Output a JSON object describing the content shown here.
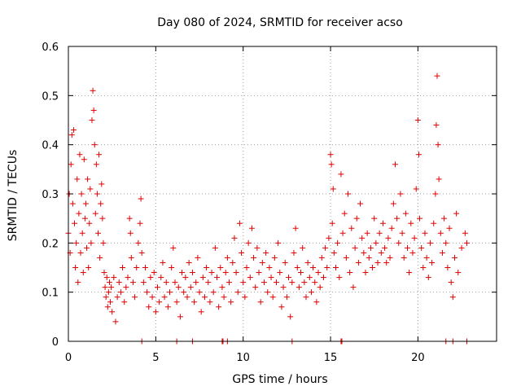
{
  "chart_data": {
    "type": "scatter",
    "title": "Day 080 of 2024, SRMTID for receiver acso",
    "xlabel": "GPS time / hours",
    "ylabel": "SRMTID / TECUs",
    "xlim": [
      0,
      24.5
    ],
    "ylim": [
      0,
      0.6
    ],
    "xticks": [
      0,
      5,
      10,
      15,
      20
    ],
    "xtick_labels": [
      "0",
      "5",
      "10",
      "15",
      "20"
    ],
    "yticks": [
      0,
      0.1,
      0.2,
      0.3,
      0.4,
      0.5,
      0.6
    ],
    "ytick_labels": [
      "0",
      "0.1",
      "0.2",
      "0.3",
      "0.4",
      "0.5",
      "0.6"
    ],
    "grid": true,
    "marker": "+",
    "color": "#e00000",
    "series": [
      {
        "name": "SRMTID",
        "points": [
          [
            0.0,
            0.22
          ],
          [
            0.05,
            0.3
          ],
          [
            0.1,
            0.18
          ],
          [
            0.15,
            0.36
          ],
          [
            0.2,
            0.42
          ],
          [
            0.25,
            0.28
          ],
          [
            0.3,
            0.43
          ],
          [
            0.35,
            0.24
          ],
          [
            0.4,
            0.15
          ],
          [
            0.45,
            0.2
          ],
          [
            0.5,
            0.33
          ],
          [
            0.55,
            0.12
          ],
          [
            0.6,
            0.26
          ],
          [
            0.65,
            0.38
          ],
          [
            0.7,
            0.18
          ],
          [
            0.75,
            0.3
          ],
          [
            0.8,
            0.22
          ],
          [
            0.85,
            0.14
          ],
          [
            0.9,
            0.37
          ],
          [
            0.95,
            0.25
          ],
          [
            1.0,
            0.28
          ],
          [
            1.05,
            0.19
          ],
          [
            1.1,
            0.33
          ],
          [
            1.15,
            0.15
          ],
          [
            1.2,
            0.24
          ],
          [
            1.25,
            0.31
          ],
          [
            1.3,
            0.2
          ],
          [
            1.35,
            0.45
          ],
          [
            1.4,
            0.51
          ],
          [
            1.45,
            0.47
          ],
          [
            1.5,
            0.4
          ],
          [
            1.55,
            0.26
          ],
          [
            1.6,
            0.36
          ],
          [
            1.65,
            0.3
          ],
          [
            1.7,
            0.22
          ],
          [
            1.75,
            0.38
          ],
          [
            1.8,
            0.17
          ],
          [
            1.85,
            0.28
          ],
          [
            1.9,
            0.32
          ],
          [
            1.95,
            0.25
          ],
          [
            2.0,
            0.2
          ],
          [
            2.05,
            0.14
          ],
          [
            2.1,
            0.11
          ],
          [
            2.15,
            0.09
          ],
          [
            2.2,
            0.13
          ],
          [
            2.25,
            0.07
          ],
          [
            2.3,
            0.1
          ],
          [
            2.35,
            0.12
          ],
          [
            2.4,
            0.08
          ],
          [
            2.45,
            0.11
          ],
          [
            2.5,
            0.06
          ],
          [
            2.6,
            0.13
          ],
          [
            2.7,
            0.04
          ],
          [
            2.8,
            0.09
          ],
          [
            2.9,
            0.12
          ],
          [
            3.0,
            0.1
          ],
          [
            3.1,
            0.15
          ],
          [
            3.2,
            0.08
          ],
          [
            3.3,
            0.11
          ],
          [
            3.4,
            0.13
          ],
          [
            3.5,
            0.25
          ],
          [
            3.55,
            0.22
          ],
          [
            3.6,
            0.17
          ],
          [
            3.7,
            0.12
          ],
          [
            3.8,
            0.09
          ],
          [
            3.9,
            0.15
          ],
          [
            4.0,
            0.2
          ],
          [
            4.1,
            0.24
          ],
          [
            4.15,
            0.29
          ],
          [
            4.2,
            0.18
          ],
          [
            4.3,
            0.12
          ],
          [
            4.4,
            0.15
          ],
          [
            4.5,
            0.1
          ],
          [
            4.6,
            0.07
          ],
          [
            4.7,
            0.13
          ],
          [
            4.8,
            0.09
          ],
          [
            4.9,
            0.14
          ],
          [
            5.0,
            0.06
          ],
          [
            5.1,
            0.11
          ],
          [
            5.2,
            0.08
          ],
          [
            5.3,
            0.13
          ],
          [
            5.4,
            0.16
          ],
          [
            5.5,
            0.09
          ],
          [
            5.6,
            0.12
          ],
          [
            5.7,
            0.07
          ],
          [
            5.8,
            0.1
          ],
          [
            5.9,
            0.15
          ],
          [
            6.0,
            0.19
          ],
          [
            6.1,
            0.12
          ],
          [
            6.2,
            0.08
          ],
          [
            6.3,
            0.11
          ],
          [
            6.4,
            0.05
          ],
          [
            6.5,
            0.14
          ],
          [
            6.6,
            0.1
          ],
          [
            6.7,
            0.13
          ],
          [
            6.8,
            0.09
          ],
          [
            6.9,
            0.16
          ],
          [
            7.0,
            0.11
          ],
          [
            7.1,
            0.14
          ],
          [
            7.2,
            0.08
          ],
          [
            7.3,
            0.12
          ],
          [
            7.4,
            0.17
          ],
          [
            7.5,
            0.1
          ],
          [
            7.6,
            0.06
          ],
          [
            7.7,
            0.13
          ],
          [
            7.8,
            0.09
          ],
          [
            7.9,
            0.15
          ],
          [
            8.0,
            0.12
          ],
          [
            8.1,
            0.08
          ],
          [
            8.2,
            0.14
          ],
          [
            8.3,
            0.1
          ],
          [
            8.4,
            0.19
          ],
          [
            8.5,
            0.13
          ],
          [
            8.6,
            0.07
          ],
          [
            8.7,
            0.15
          ],
          [
            8.8,
            0.11
          ],
          [
            8.9,
            0.09
          ],
          [
            9.0,
            0.14
          ],
          [
            9.1,
            0.17
          ],
          [
            9.2,
            0.12
          ],
          [
            9.3,
            0.08
          ],
          [
            9.4,
            0.16
          ],
          [
            9.5,
            0.21
          ],
          [
            9.6,
            0.14
          ],
          [
            9.7,
            0.1
          ],
          [
            9.8,
            0.24
          ],
          [
            9.9,
            0.18
          ],
          [
            10.0,
            0.12
          ],
          [
            10.1,
            0.09
          ],
          [
            10.2,
            0.15
          ],
          [
            10.3,
            0.2
          ],
          [
            10.4,
            0.13
          ],
          [
            10.5,
            0.23
          ],
          [
            10.6,
            0.17
          ],
          [
            10.7,
            0.11
          ],
          [
            10.8,
            0.19
          ],
          [
            10.9,
            0.14
          ],
          [
            11.0,
            0.08
          ],
          [
            11.1,
            0.16
          ],
          [
            11.2,
            0.12
          ],
          [
            11.3,
            0.18
          ],
          [
            11.4,
            0.1
          ],
          [
            11.5,
            0.15
          ],
          [
            11.6,
            0.13
          ],
          [
            11.7,
            0.09
          ],
          [
            11.8,
            0.17
          ],
          [
            11.9,
            0.12
          ],
          [
            12.0,
            0.2
          ],
          [
            12.1,
            0.14
          ],
          [
            12.2,
            0.07
          ],
          [
            12.3,
            0.11
          ],
          [
            12.4,
            0.16
          ],
          [
            12.5,
            0.09
          ],
          [
            12.6,
            0.13
          ],
          [
            12.7,
            0.05
          ],
          [
            12.8,
            0.12
          ],
          [
            12.9,
            0.18
          ],
          [
            13.0,
            0.23
          ],
          [
            13.1,
            0.15
          ],
          [
            13.2,
            0.11
          ],
          [
            13.3,
            0.14
          ],
          [
            13.4,
            0.19
          ],
          [
            13.5,
            0.12
          ],
          [
            13.6,
            0.09
          ],
          [
            13.7,
            0.16
          ],
          [
            13.8,
            0.13
          ],
          [
            13.9,
            0.1
          ],
          [
            14.0,
            0.15
          ],
          [
            14.1,
            0.12
          ],
          [
            14.2,
            0.08
          ],
          [
            14.3,
            0.14
          ],
          [
            14.4,
            0.11
          ],
          [
            14.5,
            0.17
          ],
          [
            14.6,
            0.13
          ],
          [
            14.7,
            0.19
          ],
          [
            14.8,
            0.15
          ],
          [
            14.9,
            0.21
          ],
          [
            15.0,
            0.38
          ],
          [
            15.05,
            0.36
          ],
          [
            15.1,
            0.24
          ],
          [
            15.15,
            0.31
          ],
          [
            15.2,
            0.18
          ],
          [
            15.3,
            0.15
          ],
          [
            15.4,
            0.2
          ],
          [
            15.5,
            0.13
          ],
          [
            15.6,
            0.34
          ],
          [
            15.7,
            0.22
          ],
          [
            15.8,
            0.26
          ],
          [
            15.9,
            0.17
          ],
          [
            16.0,
            0.3
          ],
          [
            16.1,
            0.14
          ],
          [
            16.2,
            0.23
          ],
          [
            16.3,
            0.11
          ],
          [
            16.4,
            0.19
          ],
          [
            16.5,
            0.25
          ],
          [
            16.6,
            0.16
          ],
          [
            16.7,
            0.28
          ],
          [
            16.8,
            0.21
          ],
          [
            16.9,
            0.18
          ],
          [
            17.0,
            0.14
          ],
          [
            17.1,
            0.22
          ],
          [
            17.2,
            0.17
          ],
          [
            17.3,
            0.19
          ],
          [
            17.4,
            0.15
          ],
          [
            17.5,
            0.25
          ],
          [
            17.6,
            0.2
          ],
          [
            17.7,
            0.16
          ],
          [
            17.8,
            0.22
          ],
          [
            17.9,
            0.18
          ],
          [
            18.0,
            0.24
          ],
          [
            18.1,
            0.19
          ],
          [
            18.2,
            0.16
          ],
          [
            18.3,
            0.21
          ],
          [
            18.4,
            0.17
          ],
          [
            18.5,
            0.23
          ],
          [
            18.6,
            0.28
          ],
          [
            18.7,
            0.36
          ],
          [
            18.8,
            0.25
          ],
          [
            18.9,
            0.2
          ],
          [
            19.0,
            0.3
          ],
          [
            19.1,
            0.22
          ],
          [
            19.2,
            0.17
          ],
          [
            19.3,
            0.26
          ],
          [
            19.4,
            0.19
          ],
          [
            19.5,
            0.14
          ],
          [
            19.6,
            0.24
          ],
          [
            19.7,
            0.18
          ],
          [
            19.8,
            0.21
          ],
          [
            19.9,
            0.31
          ],
          [
            20.0,
            0.45
          ],
          [
            20.05,
            0.38
          ],
          [
            20.1,
            0.25
          ],
          [
            20.2,
            0.19
          ],
          [
            20.3,
            0.15
          ],
          [
            20.4,
            0.22
          ],
          [
            20.5,
            0.17
          ],
          [
            20.6,
            0.13
          ],
          [
            20.7,
            0.2
          ],
          [
            20.8,
            0.16
          ],
          [
            20.9,
            0.24
          ],
          [
            21.0,
            0.3
          ],
          [
            21.05,
            0.44
          ],
          [
            21.1,
            0.54
          ],
          [
            21.15,
            0.4
          ],
          [
            21.2,
            0.33
          ],
          [
            21.3,
            0.22
          ],
          [
            21.4,
            0.18
          ],
          [
            21.5,
            0.25
          ],
          [
            21.6,
            0.2
          ],
          [
            21.7,
            0.15
          ],
          [
            21.8,
            0.23
          ],
          [
            21.9,
            0.12
          ],
          [
            22.0,
            0.09
          ],
          [
            22.1,
            0.17
          ],
          [
            22.2,
            0.26
          ],
          [
            22.3,
            0.14
          ],
          [
            22.5,
            0.19
          ],
          [
            22.7,
            0.22
          ],
          [
            22.8,
            0.2
          ]
        ]
      }
    ],
    "zero_points_x": [
      4.2,
      6.2,
      7.1,
      8.8,
      8.85,
      9.1,
      12.8,
      15.6,
      15.65,
      21.6,
      22.0,
      22.8
    ]
  }
}
